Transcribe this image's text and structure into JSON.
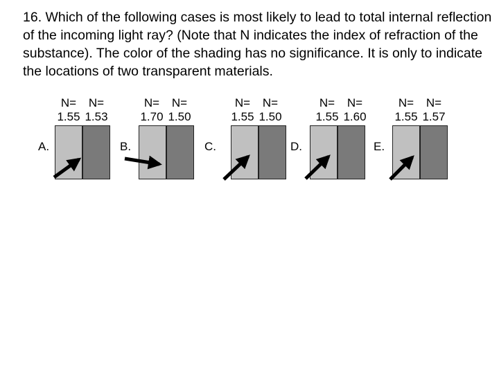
{
  "question": "16. Which of the following cases is most likely to lead to total internal reflection of the incoming light ray? (Note that N indicates the index of refraction of the substance). The color of the shading has no significance. It is only to indicate the locations of two transparent materials.",
  "options": [
    {
      "letter": "A.",
      "n1_label": "N=",
      "n1": "1.55",
      "n2_label": "N=",
      "n2": "1.53"
    },
    {
      "letter": "B.",
      "n1_label": "N=",
      "n1": "1.70",
      "n2_label": "N=",
      "n2": "1.50"
    },
    {
      "letter": "C.",
      "n1_label": "N=",
      "n1": "1.55",
      "n2_label": "N=",
      "n2": "1.50"
    },
    {
      "letter": "D.",
      "n1_label": "N=",
      "n1": "1.55",
      "n2_label": "N=",
      "n2": "1.60"
    },
    {
      "letter": "E.",
      "n1_label": "N=",
      "n1": "1.55",
      "n2_label": "N=",
      "n2": "1.57"
    }
  ],
  "colors": {
    "light_material": "#c0c0c0",
    "dark_material": "#7a7a7a",
    "arrow": "#000000"
  }
}
